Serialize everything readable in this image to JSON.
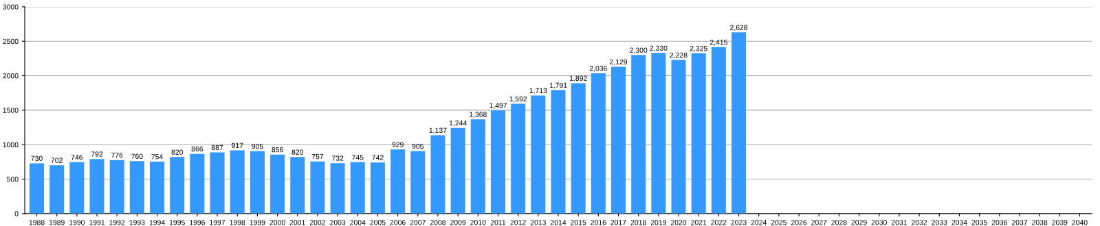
{
  "chart_data": {
    "type": "bar",
    "categories": [
      "1988",
      "1989",
      "1990",
      "1991",
      "1992",
      "1993",
      "1994",
      "1995",
      "1996",
      "1997",
      "1998",
      "1999",
      "2000",
      "2001",
      "2002",
      "2003",
      "2004",
      "2005",
      "2006",
      "2007",
      "2008",
      "2009",
      "2010",
      "2011",
      "2012",
      "2013",
      "2014",
      "2015",
      "2016",
      "2017",
      "2018",
      "2019",
      "2020",
      "2021",
      "2022",
      "2023",
      "2024",
      "2025",
      "2026",
      "2027",
      "2028",
      "2029",
      "2030",
      "2031",
      "2032",
      "2033",
      "2034",
      "2035",
      "2036",
      "2037",
      "2038",
      "2039",
      "2040"
    ],
    "values": [
      730,
      702,
      746,
      792,
      776,
      760,
      754,
      820,
      866,
      887,
      917,
      905,
      856,
      820,
      757,
      732,
      745,
      742,
      929,
      905,
      1137,
      1244,
      1368,
      1497,
      1592,
      1713,
      1791,
      1892,
      2036,
      2129,
      2300,
      2330,
      2228,
      2325,
      2415,
      2628,
      null,
      null,
      null,
      null,
      null,
      null,
      null,
      null,
      null,
      null,
      null,
      null,
      null,
      null,
      null,
      null,
      null
    ],
    "value_labels": [
      "730",
      "702",
      "746",
      "792",
      "776",
      "760",
      "754",
      "820",
      "866",
      "887",
      "917",
      "905",
      "856",
      "820",
      "757",
      "732",
      "745",
      "742",
      "929",
      "905",
      "1,137",
      "1,244",
      "1,368",
      "1,497",
      "1,592",
      "1,713",
      "1,791",
      "1,892",
      "2,036",
      "2,129",
      "2,300",
      "2,330",
      "2,228",
      "2,325",
      "2,415",
      "2,628",
      null,
      null,
      null,
      null,
      null,
      null,
      null,
      null,
      null,
      null,
      null,
      null,
      null,
      null,
      null,
      null,
      null
    ],
    "color": "#3399ff",
    "ylim": [
      0,
      3000
    ],
    "yticks": [
      0,
      500,
      1000,
      1500,
      2000,
      2500,
      3000
    ],
    "grid": "y"
  }
}
